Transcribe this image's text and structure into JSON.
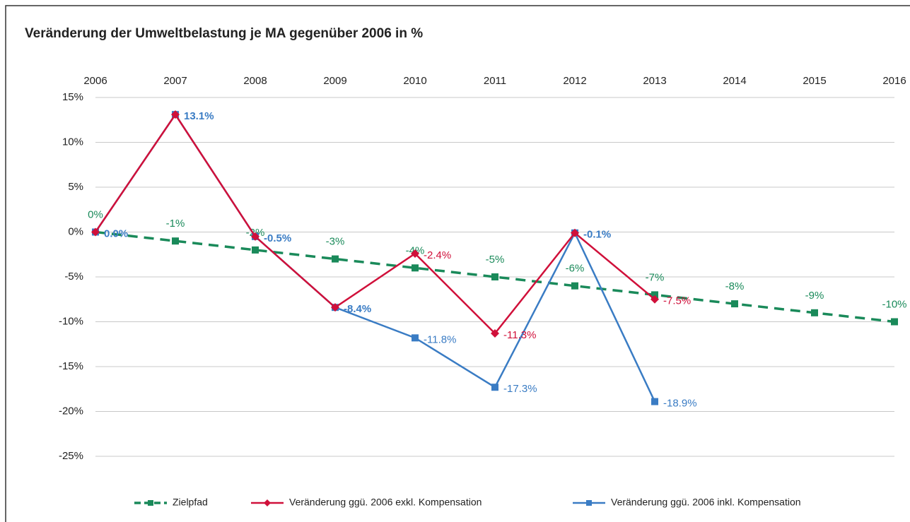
{
  "chart_data": {
    "type": "line",
    "title": "Veränderung der Umweltbelastung je MA gegenüber 2006 in %",
    "categories": [
      "2006",
      "2007",
      "2008",
      "2009",
      "2010",
      "2011",
      "2012",
      "2013",
      "2014",
      "2015",
      "2016"
    ],
    "ylim": [
      -25,
      15
    ],
    "yticks": [
      {
        "value": -25,
        "label": "-25%"
      },
      {
        "value": -20,
        "label": "-20%"
      },
      {
        "value": -15,
        "label": "-15%"
      },
      {
        "value": -10,
        "label": "-10%"
      },
      {
        "value": -5,
        "label": "-5%"
      },
      {
        "value": 0,
        "label": "0%"
      },
      {
        "value": 5,
        "label": "5%"
      },
      {
        "value": 10,
        "label": "10%"
      },
      {
        "value": 15,
        "label": "15%"
      }
    ],
    "grid": true,
    "legend": "bottom",
    "series": [
      {
        "name": "Zielpfad",
        "color": "#1a8a5a",
        "dashed": true,
        "marker": "square",
        "values": [
          0,
          -1,
          -2,
          -3,
          -4,
          -5,
          -6,
          -7,
          -8,
          -9,
          -10
        ],
        "value_labels": [
          "0%",
          "-1%",
          "-2%",
          "-3%",
          "-4%",
          "-5%",
          "-6%",
          "-7%",
          "-8%",
          "-9%",
          "-10%"
        ]
      },
      {
        "name": "Veränderung ggü. 2006 inkl. Kompensation",
        "color": "#3a7cc4",
        "marker": "square",
        "values": [
          0,
          13.1,
          -0.5,
          -8.4,
          -11.8,
          -17.3,
          -0.1,
          -18.9,
          null,
          null,
          null
        ],
        "value_labels": [
          "0.0%",
          "13.1%",
          "-0.5%",
          "-8.4%",
          "-11.8%",
          "-17.3%",
          "-0.1%",
          "-18.9%",
          null,
          null,
          null
        ]
      },
      {
        "name": "Veränderung ggü. 2006 exkl. Kompensation",
        "color": "#d0103a",
        "marker": "diamond",
        "values": [
          0,
          13.1,
          -0.5,
          -8.4,
          -2.4,
          -11.3,
          -0.1,
          -7.5,
          null,
          null,
          null
        ],
        "value_labels": [
          null,
          null,
          null,
          null,
          "-2.4%",
          "-11.3%",
          null,
          "-7.5%",
          null,
          null,
          null
        ]
      }
    ]
  }
}
